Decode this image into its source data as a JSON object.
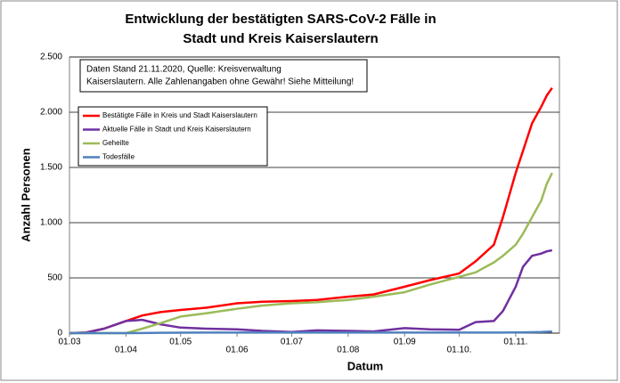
{
  "chart_data": {
    "type": "line",
    "title": [
      "Entwicklung der bestätigten SARS-CoV-2 Fälle in",
      "Stadt und Kreis Kaiserslautern"
    ],
    "xlabel": "Datum",
    "ylabel": "Anzahl Personen",
    "annotation": [
      "Daten Stand 21.11.2020, Quelle: Kreisverwaltung",
      "Kaiserslautern. Alle Zahlenangaben ohne Gewähr! Siehe Mitteilung!"
    ],
    "x": [
      "01.03",
      "10.03",
      "20.03",
      "01.04",
      "10.04",
      "20.04",
      "01.05",
      "15.05",
      "01.06",
      "15.06",
      "01.07",
      "15.07",
      "01.08",
      "15.08",
      "01.09",
      "15.09",
      "01.10",
      "10.10",
      "20.10",
      "25.10",
      "01.11",
      "05.11",
      "10.11",
      "15.11",
      "18.11",
      "21.11"
    ],
    "xlim": [
      "01.03",
      "25.11"
    ],
    "xticks": [
      "01.03",
      "01.04",
      "01.05",
      "01.06",
      "01.07",
      "01.08",
      "01.09",
      "01.10.",
      "01.11."
    ],
    "ylim": [
      0,
      2500
    ],
    "yticks": [
      {
        "value": 0,
        "label": "0"
      },
      {
        "value": 500,
        "label": "500"
      },
      {
        "value": 1000,
        "label": "1.000"
      },
      {
        "value": 1500,
        "label": "1.500"
      },
      {
        "value": 2000,
        "label": "2.000"
      },
      {
        "value": 2500,
        "label": "2.500"
      }
    ],
    "grid": true,
    "legend": "upper left",
    "series": [
      {
        "name": "Bestätigte Fälle in Kreis und Stadt Kaiserslautern",
        "color": "#ff0000",
        "values": [
          0,
          5,
          40,
          110,
          160,
          190,
          210,
          230,
          270,
          285,
          290,
          300,
          330,
          350,
          420,
          480,
          540,
          650,
          800,
          1050,
          1450,
          1650,
          1900,
          2050,
          2150,
          2220
        ]
      },
      {
        "name": "Aktuelle Fälle in Stadt und Kreis Kaiserslautern",
        "color": "#7030a0",
        "values": [
          0,
          5,
          40,
          110,
          120,
          80,
          50,
          40,
          35,
          20,
          10,
          25,
          20,
          15,
          45,
          35,
          30,
          100,
          110,
          200,
          420,
          600,
          700,
          720,
          740,
          750
        ]
      },
      {
        "name": "Geheilte",
        "color": "#9bbb59",
        "values": [
          0,
          0,
          0,
          0,
          40,
          90,
          150,
          180,
          220,
          250,
          270,
          280,
          300,
          330,
          370,
          440,
          510,
          550,
          640,
          700,
          800,
          900,
          1050,
          1200,
          1350,
          1450
        ]
      },
      {
        "name": "Todesfälle",
        "color": "#4f81bd",
        "values": [
          0,
          0,
          0,
          0,
          1,
          3,
          4,
          5,
          5,
          5,
          5,
          5,
          5,
          5,
          5,
          5,
          5,
          5,
          5,
          5,
          6,
          7,
          8,
          10,
          12,
          15
        ]
      }
    ]
  }
}
